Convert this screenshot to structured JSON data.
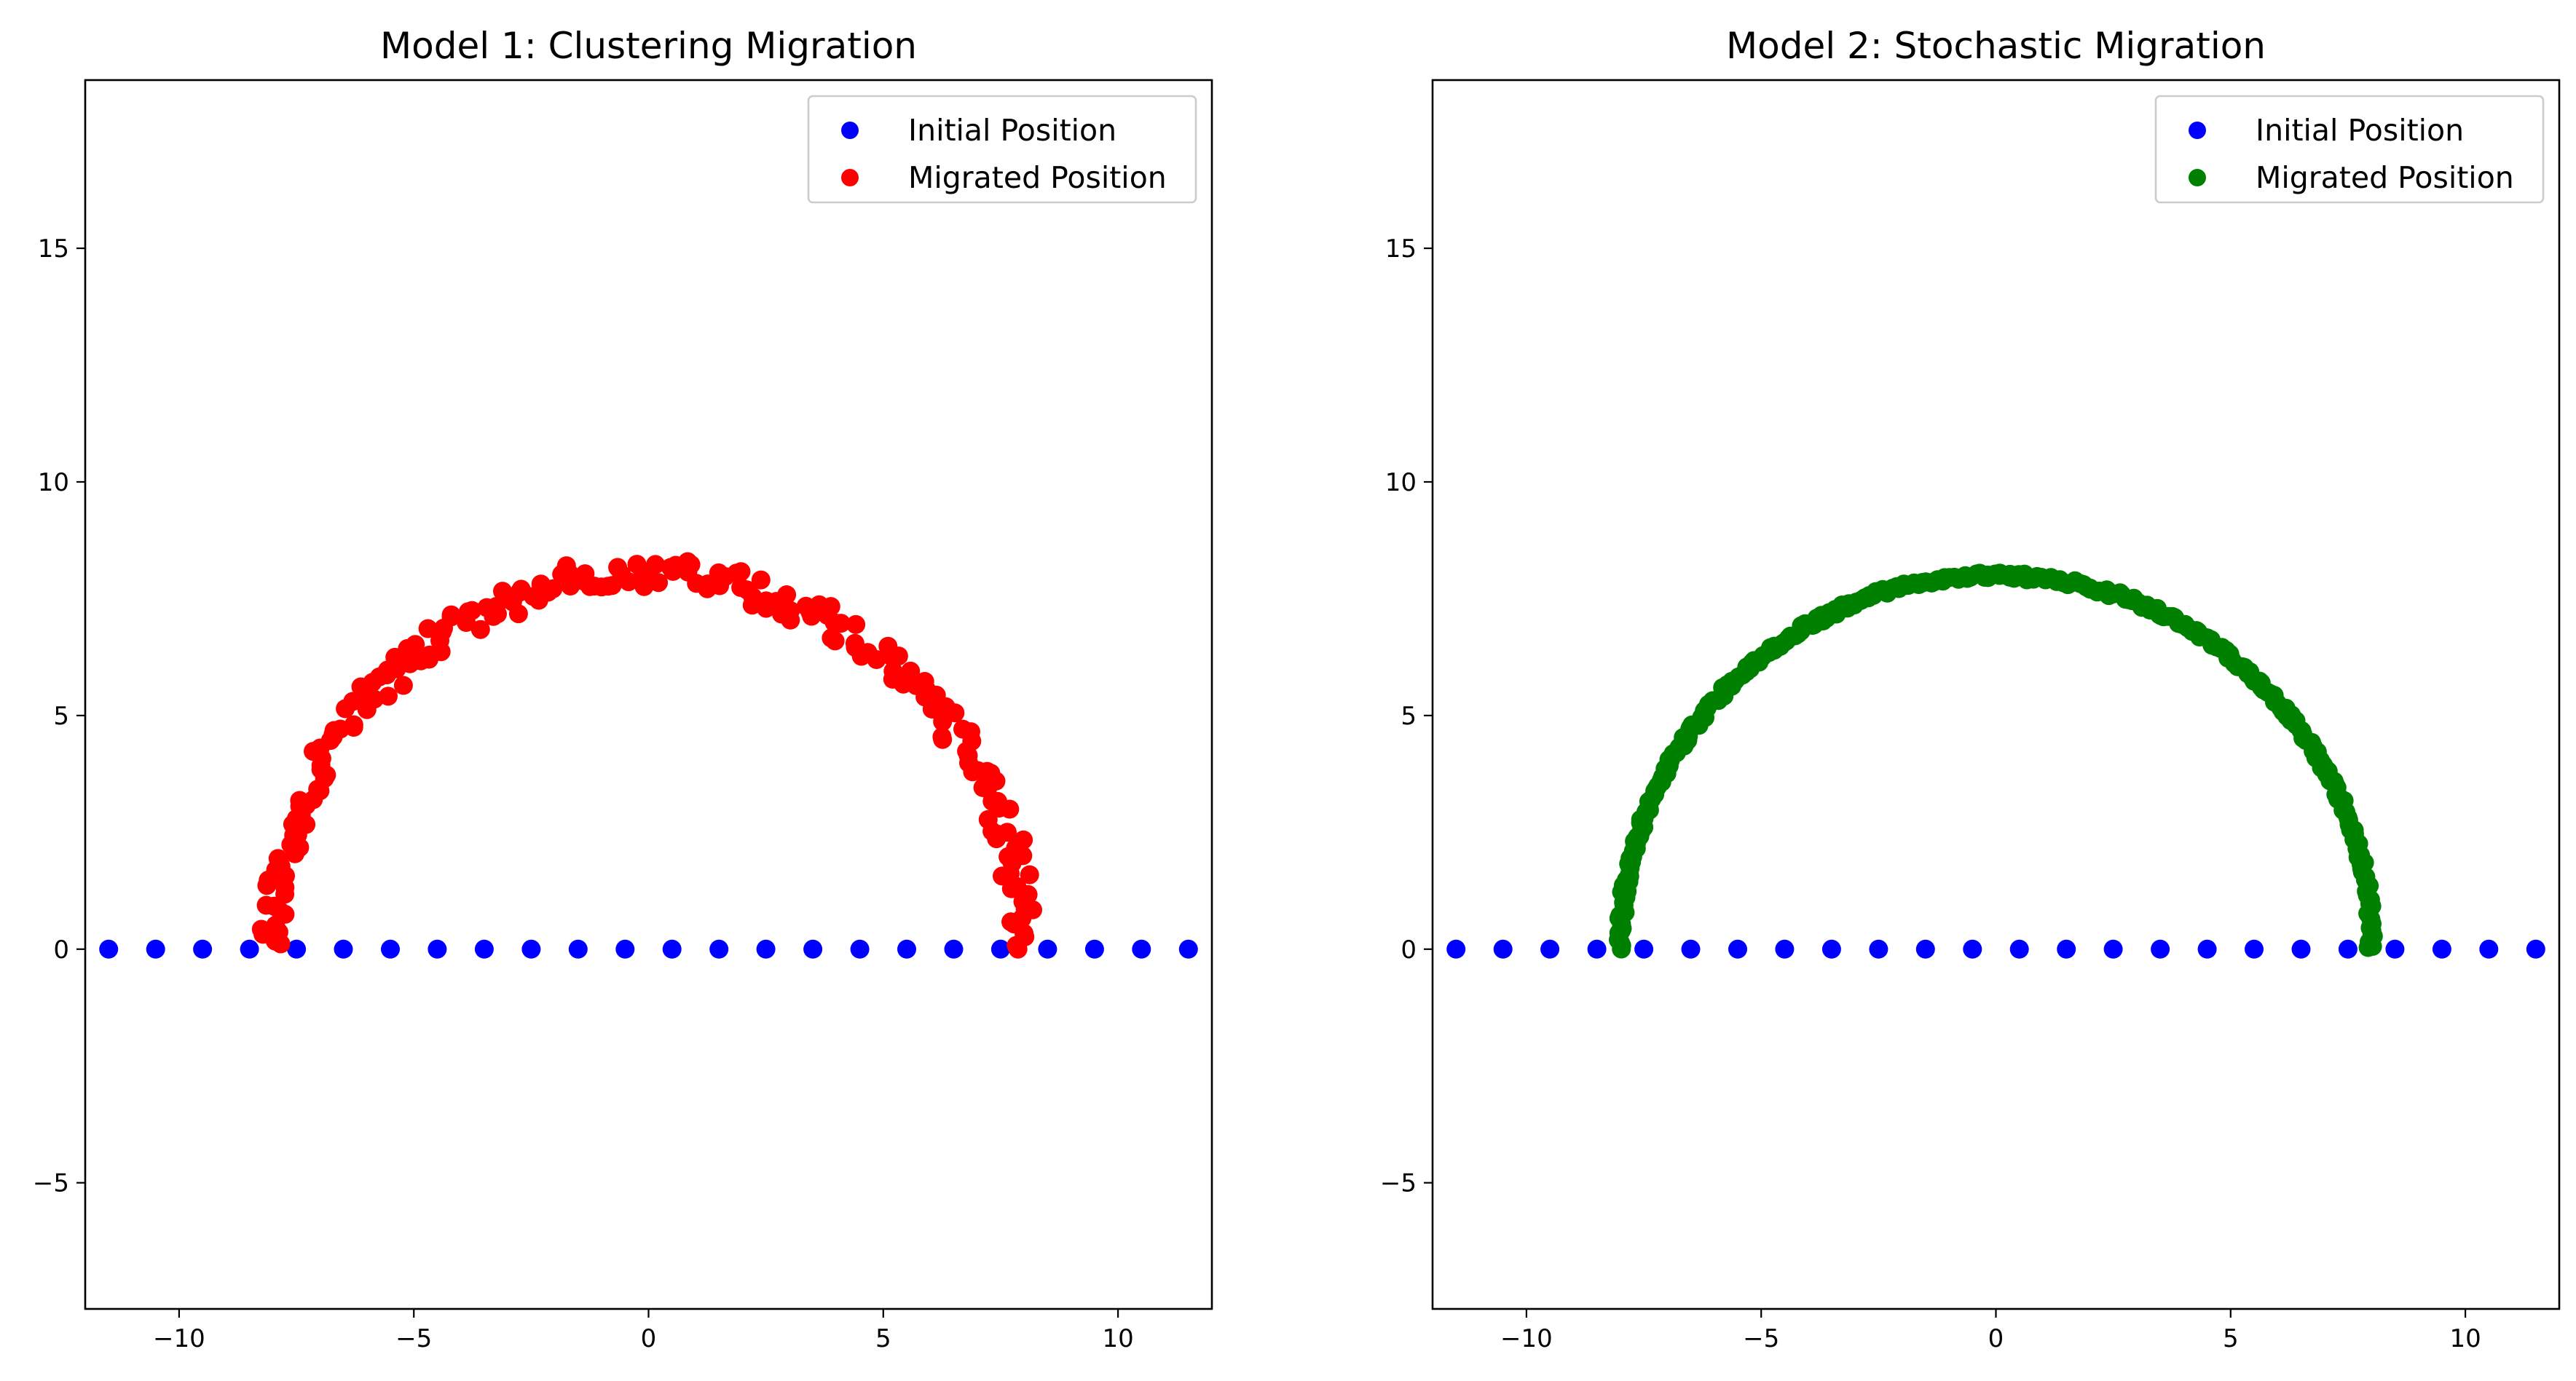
{
  "chart_data": [
    {
      "type": "scatter",
      "title": "Model 1: Clustering Migration",
      "xlabel": "",
      "ylabel": "",
      "xlim": [
        -12,
        12
      ],
      "ylim": [
        -7.7,
        18.6
      ],
      "xticks": [
        -10,
        -5,
        0,
        5,
        10
      ],
      "xtick_labels": [
        "−10",
        "−5",
        "0",
        "5",
        "10"
      ],
      "yticks": [
        -5,
        0,
        5,
        10,
        15
      ],
      "ytick_labels": [
        "−5",
        "0",
        "5",
        "10",
        "15"
      ],
      "grid": false,
      "legend_position": "top-right",
      "series": [
        {
          "name": "Initial Position",
          "color": "#0000ff",
          "marker": "circle",
          "x": [
            -11.5,
            -10.5,
            -9.5,
            -8.5,
            -7.5,
            -6.5,
            -5.5,
            -4.5,
            -3.5,
            -2.5,
            -1.5,
            -0.5,
            0.5,
            1.5,
            2.5,
            3.5,
            4.5,
            5.5,
            6.5,
            7.5,
            8.5,
            9.5,
            10.5,
            11.5
          ],
          "y": [
            0,
            0,
            0,
            0,
            0,
            0,
            0,
            0,
            0,
            0,
            0,
            0,
            0,
            0,
            0,
            0,
            0,
            0,
            0,
            0,
            0,
            0,
            0,
            0
          ]
        },
        {
          "name": "Migrated Position",
          "color": "#ff0000",
          "marker": "circle",
          "generated": "semicircle",
          "radius": 8,
          "count": 220,
          "jitter": 0.3
        }
      ]
    },
    {
      "type": "scatter",
      "title": "Model 2: Stochastic Migration",
      "xlabel": "",
      "ylabel": "",
      "xlim": [
        -12,
        12
      ],
      "ylim": [
        -7.7,
        18.6
      ],
      "xticks": [
        -10,
        -5,
        0,
        5,
        10
      ],
      "xtick_labels": [
        "−10",
        "−5",
        "0",
        "5",
        "10"
      ],
      "yticks": [
        -5,
        0,
        5,
        10,
        15
      ],
      "ytick_labels": [
        "−5",
        "0",
        "5",
        "10",
        "15"
      ],
      "grid": false,
      "legend_position": "top-right",
      "series": [
        {
          "name": "Initial Position",
          "color": "#0000ff",
          "marker": "circle",
          "x": [
            -11.5,
            -10.5,
            -9.5,
            -8.5,
            -7.5,
            -6.5,
            -5.5,
            -4.5,
            -3.5,
            -2.5,
            -1.5,
            -0.5,
            0.5,
            1.5,
            2.5,
            3.5,
            4.5,
            5.5,
            6.5,
            7.5,
            8.5,
            9.5,
            10.5,
            11.5
          ],
          "y": [
            0,
            0,
            0,
            0,
            0,
            0,
            0,
            0,
            0,
            0,
            0,
            0,
            0,
            0,
            0,
            0,
            0,
            0,
            0,
            0,
            0,
            0,
            0,
            0
          ]
        },
        {
          "name": "Migrated Position",
          "color": "#008000",
          "marker": "circle",
          "generated": "semicircle",
          "radius": 8,
          "count": 320,
          "jitter": 0.06
        }
      ]
    }
  ]
}
